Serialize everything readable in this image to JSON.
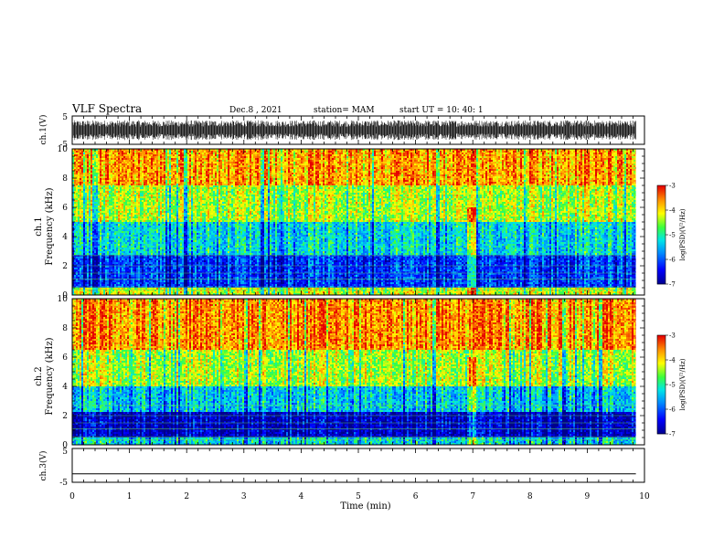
{
  "header": {
    "title": "VLF Spectra",
    "date": "Dec.8 , 2021",
    "station": "station= MAM",
    "start": "start  UT =   10: 40: 1"
  },
  "chart_data": [
    {
      "type": "line",
      "name": "waveform-ch1",
      "ylabel": "ch.1(V)",
      "ylim": [
        -5,
        5
      ],
      "yticks": [
        "5",
        "-5"
      ],
      "xlim": [
        0,
        10
      ],
      "amplitude_range": [
        -3.5,
        3.5
      ]
    },
    {
      "type": "heatmap",
      "name": "spectrogram-ch1",
      "ylabel_line1": "ch.1",
      "ylabel_line2": "Frequency (kHz)",
      "ylim": [
        0,
        10
      ],
      "yticks": [
        "0",
        "2",
        "4",
        "6",
        "8",
        "10"
      ],
      "xlim": [
        0,
        9.85
      ],
      "colorbar": {
        "label": "log(PSD)(V²/Hz)",
        "range": [
          -7,
          -3
        ],
        "ticks": [
          "-3",
          "-4",
          "-5",
          "-6",
          "-7"
        ]
      },
      "bands": [
        {
          "from_khz": 0,
          "to_khz": 0.5,
          "level": -4.2
        },
        {
          "from_khz": 0.5,
          "to_khz": 2.7,
          "level": -6.1
        },
        {
          "from_khz": 2.7,
          "to_khz": 5.0,
          "level": -5.2
        },
        {
          "from_khz": 5.0,
          "to_khz": 7.5,
          "level": -4.3
        },
        {
          "from_khz": 7.5,
          "to_khz": 10,
          "level": -3.6
        }
      ]
    },
    {
      "type": "heatmap",
      "name": "spectrogram-ch2",
      "ylabel_line1": "ch.2",
      "ylabel_line2": "Frequency (kHz)",
      "ylim": [
        0,
        10
      ],
      "yticks": [
        "0",
        "2",
        "4",
        "6",
        "8",
        "10"
      ],
      "xlim": [
        0,
        9.85
      ],
      "colorbar": {
        "label": "log(PSD)(V²/Hz)",
        "range": [
          -7,
          -3
        ],
        "ticks": [
          "-3",
          "-4",
          "-5",
          "-6",
          "-7"
        ]
      },
      "bands": [
        {
          "from_khz": 0,
          "to_khz": 0.5,
          "level": -5.2
        },
        {
          "from_khz": 0.5,
          "to_khz": 2.3,
          "level": -6.6
        },
        {
          "from_khz": 2.3,
          "to_khz": 4.0,
          "level": -5.3
        },
        {
          "from_khz": 4.0,
          "to_khz": 6.5,
          "level": -4.3
        },
        {
          "from_khz": 6.5,
          "to_khz": 10,
          "level": -3.5
        }
      ]
    },
    {
      "type": "line",
      "name": "waveform-ch3",
      "ylabel": "ch.3(V)",
      "ylim": [
        -5,
        5
      ],
      "yticks": [
        "5",
        "-5"
      ],
      "xlim": [
        0,
        10
      ],
      "values": [
        {
          "x": 0,
          "y": -2.5
        },
        {
          "x": 9.85,
          "y": -2.5
        }
      ],
      "xlabel": "Time  (min)",
      "xticks": [
        "0",
        "1",
        "2",
        "3",
        "4",
        "5",
        "6",
        "7",
        "8",
        "9",
        "10"
      ]
    }
  ]
}
